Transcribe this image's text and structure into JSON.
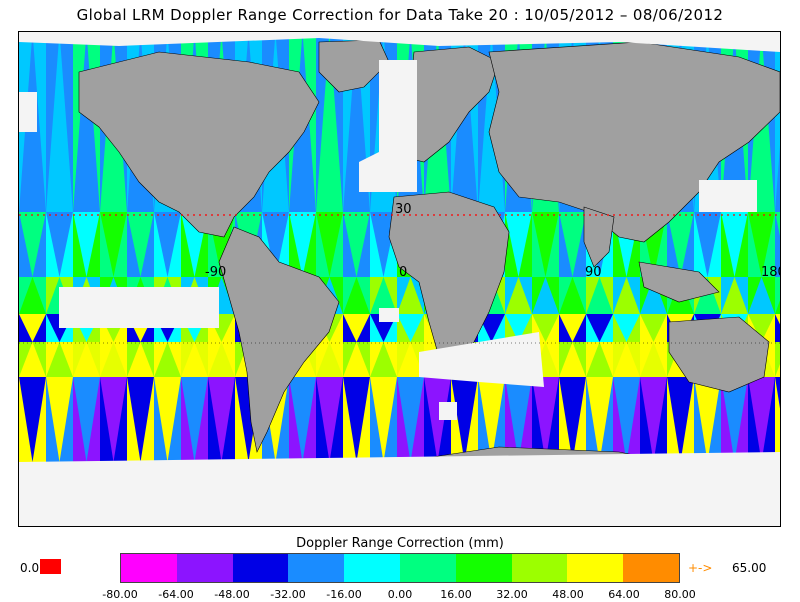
{
  "title": "Global LRM Doppler Range Correction for Data Take 20 : 10/05/2012 – 08/06/2012",
  "map": {
    "latitude_label": "30",
    "longitude_labels": [
      "-90",
      "0",
      "90",
      "180"
    ],
    "land_color": "#a0a0a0",
    "no_data_color": "#f4f4f4",
    "track_colors": [
      "#00ff80",
      "#1a8cff",
      "#00c8ff",
      "#14ff00",
      "#9cff00",
      "#ffff00",
      "#0000e6",
      "#8c14ff"
    ]
  },
  "legend": {
    "title": "Doppler Range Correction (mm)",
    "ticks": [
      "-80.00",
      "-64.00",
      "-48.00",
      "-32.00",
      "-16.00",
      "0.00",
      "16.00",
      "32.00",
      "48.00",
      "64.00",
      "80.00"
    ],
    "colors": [
      "#ff00ff",
      "#8c14ff",
      "#0000e6",
      "#1a8cff",
      "#00ffff",
      "#00ff80",
      "#14ff00",
      "#9cff00",
      "#ffff00",
      "#ff8c00"
    ],
    "missing_value": "0.0",
    "missing_color": "#ff0000",
    "overflow_symbol": "+->",
    "overflow_value": "65.00"
  }
}
